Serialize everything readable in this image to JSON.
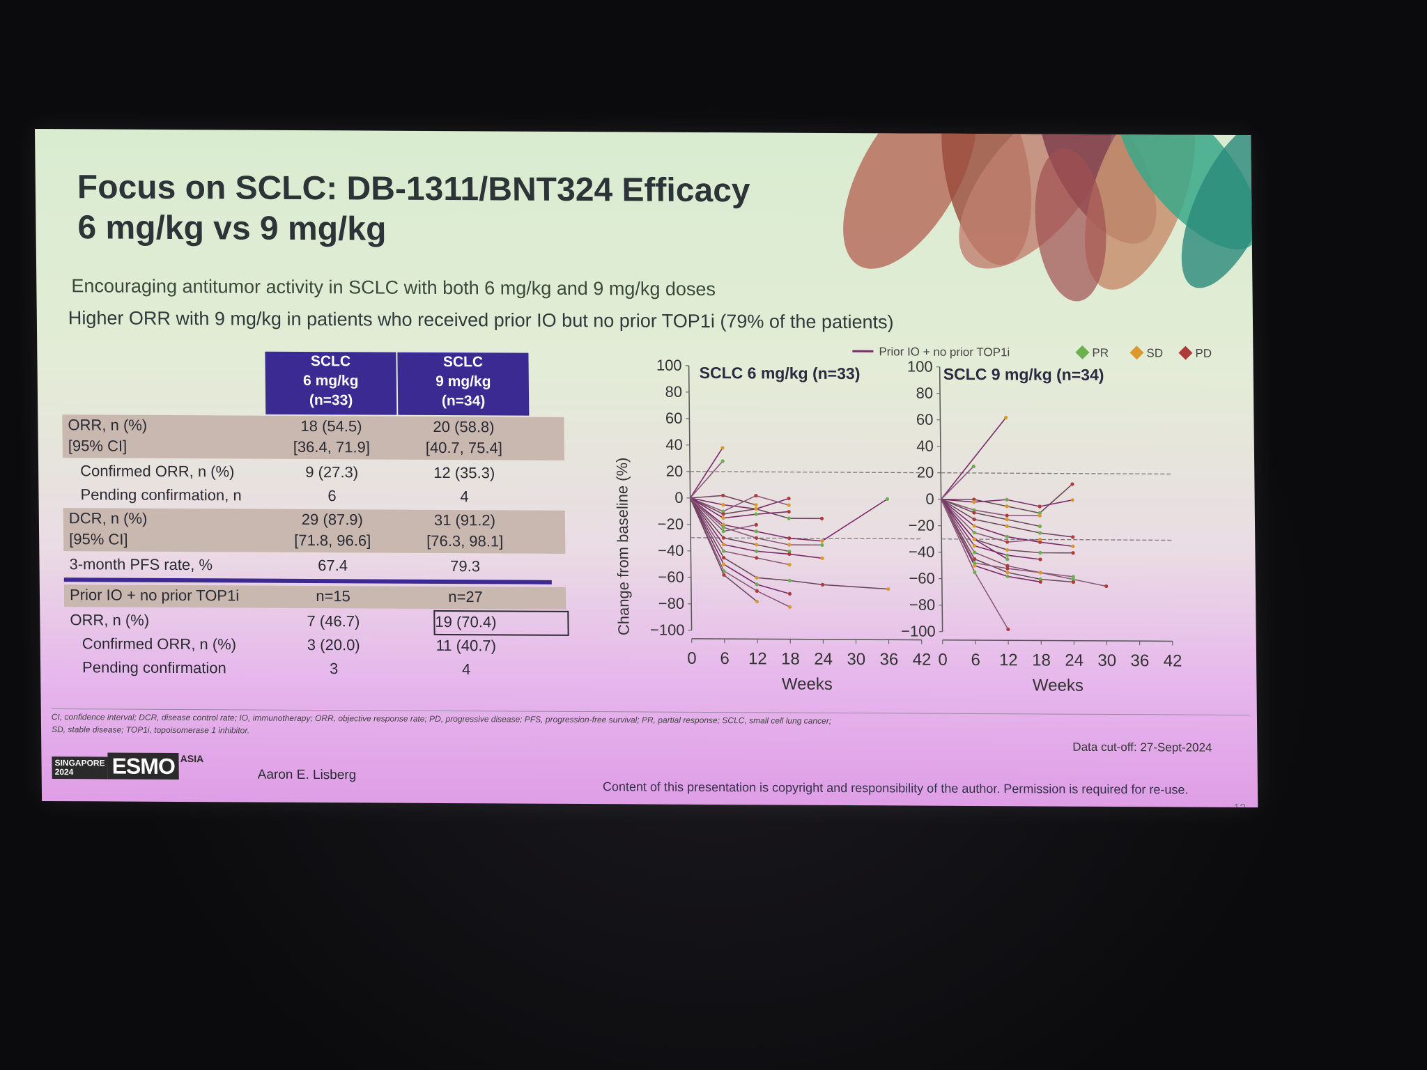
{
  "slide": {
    "title_line1": "Focus on SCLC: DB-1311/BNT324 Efficacy",
    "title_line2": "6 mg/kg vs 9 mg/kg",
    "subtitle1": "Encouraging antitumor activity in SCLC with both 6 mg/kg and 9 mg/kg doses",
    "subtitle2": "Higher ORR with 9 mg/kg in patients who received prior IO but no prior TOP1i (79% of the patients)"
  },
  "table": {
    "headers": [
      [
        "SCLC",
        "6 mg/kg",
        "(n=33)"
      ],
      [
        "SCLC",
        "9 mg/kg",
        "(n=34)"
      ]
    ],
    "rows": [
      {
        "label": "ORR, n (%)",
        "a": "18 (54.5)",
        "b": "20 (58.8)"
      },
      {
        "label": "[95% CI]",
        "a": "[36.4, 71.9]",
        "b": "[40.7, 75.4]"
      },
      {
        "label": "Confirmed ORR, n (%)",
        "a": "9 (27.3)",
        "b": "12 (35.3)"
      },
      {
        "label": "Pending confirmation, n",
        "a": "6",
        "b": "4"
      },
      {
        "label": "DCR, n (%)",
        "a": "29 (87.9)",
        "b": "31 (91.2)"
      },
      {
        "label": "[95% CI]",
        "a": "[71.8, 96.6]",
        "b": "[76.3, 98.1]"
      },
      {
        "label": "3-month PFS rate, %",
        "a": "67.4",
        "b": "79.3"
      },
      {
        "label": "Prior IO + no prior TOP1i",
        "a": "n=15",
        "b": "n=27"
      },
      {
        "label": "ORR, n (%)",
        "a": "7 (46.7)",
        "b": "19 (70.4)"
      },
      {
        "label": "Confirmed ORR, n (%)",
        "a": "3 (20.0)",
        "b": "11 (40.7)"
      },
      {
        "label": "Pending confirmation",
        "a": "3",
        "b": "4"
      }
    ]
  },
  "legend": {
    "line_label": "Prior IO + no prior TOP1i",
    "pr": "PR",
    "sd": "SD",
    "pd": "PD",
    "colors": {
      "pr": "#6ab04c",
      "sd": "#d99a2b",
      "pd": "#b03a3a",
      "io_line": "#7a2a6a"
    }
  },
  "chart_data": [
    {
      "type": "line",
      "title": "SCLC 6 mg/kg (n=33)",
      "xlabel": "Weeks",
      "ylabel": "Change from baseline (%)",
      "xlim": [
        0,
        42
      ],
      "ylim": [
        -100,
        100
      ],
      "xticks": [
        "0",
        "6",
        "12",
        "18",
        "24",
        "30",
        "36",
        "42"
      ],
      "yticks": [
        "100",
        "80",
        "60",
        "40",
        "20",
        "0",
        "−20",
        "−40",
        "−60",
        "−80",
        "−100"
      ],
      "reference_lines": [
        20,
        -30
      ],
      "series": [
        {
          "x": [
            0,
            6
          ],
          "y": [
            0,
            38
          ]
        },
        {
          "x": [
            0,
            6
          ],
          "y": [
            0,
            28
          ]
        },
        {
          "x": [
            0,
            6,
            12
          ],
          "y": [
            0,
            2,
            -5
          ]
        },
        {
          "x": [
            0,
            6,
            12,
            18
          ],
          "y": [
            0,
            -5,
            -8,
            0
          ]
        },
        {
          "x": [
            0,
            6,
            12,
            18
          ],
          "y": [
            0,
            -10,
            2,
            -5
          ]
        },
        {
          "x": [
            0,
            6,
            12,
            18,
            24
          ],
          "y": [
            0,
            -12,
            -8,
            -15,
            -15
          ]
        },
        {
          "x": [
            0,
            6,
            12,
            18,
            24,
            36
          ],
          "y": [
            0,
            -20,
            -25,
            -30,
            -32,
            0
          ]
        },
        {
          "x": [
            0,
            6,
            12,
            18,
            24
          ],
          "y": [
            0,
            -22,
            -30,
            -35,
            -35
          ]
        },
        {
          "x": [
            0,
            6,
            12,
            18
          ],
          "y": [
            0,
            -30,
            -35,
            -40
          ]
        },
        {
          "x": [
            0,
            6,
            12,
            18,
            24
          ],
          "y": [
            0,
            -35,
            -40,
            -42,
            -45
          ]
        },
        {
          "x": [
            0,
            6,
            12,
            18
          ],
          "y": [
            0,
            -40,
            -45,
            -50
          ]
        },
        {
          "x": [
            0,
            6,
            12,
            18,
            24,
            36
          ],
          "y": [
            0,
            -45,
            -60,
            -62,
            -65,
            -68
          ]
        },
        {
          "x": [
            0,
            6,
            12,
            18
          ],
          "y": [
            0,
            -50,
            -65,
            -72
          ]
        },
        {
          "x": [
            0,
            6,
            12,
            18
          ],
          "y": [
            0,
            -55,
            -70,
            -82
          ]
        },
        {
          "x": [
            0,
            6,
            12
          ],
          "y": [
            0,
            -58,
            -78
          ]
        },
        {
          "x": [
            0,
            6,
            12,
            18
          ],
          "y": [
            0,
            -15,
            -12,
            -10
          ]
        },
        {
          "x": [
            0,
            6,
            12
          ],
          "y": [
            0,
            -25,
            -20
          ]
        }
      ]
    },
    {
      "type": "line",
      "title": "SCLC 9 mg/kg (n=34)",
      "xlabel": "Weeks",
      "xlim": [
        0,
        42
      ],
      "ylim": [
        -100,
        100
      ],
      "xticks": [
        "0",
        "6",
        "12",
        "18",
        "24",
        "30",
        "36",
        "42"
      ],
      "yticks": [
        "100",
        "80",
        "60",
        "40",
        "20",
        "0",
        "−20",
        "−40",
        "−60",
        "−80",
        "−100"
      ],
      "reference_lines": [
        20,
        -30
      ],
      "series": [
        {
          "x": [
            0,
            12
          ],
          "y": [
            0,
            62
          ]
        },
        {
          "x": [
            0,
            6
          ],
          "y": [
            0,
            25
          ]
        },
        {
          "x": [
            0,
            6,
            12,
            18,
            24
          ],
          "y": [
            0,
            0,
            -5,
            -10,
            12
          ]
        },
        {
          "x": [
            0,
            6,
            12,
            18,
            24
          ],
          "y": [
            0,
            -2,
            0,
            -5,
            0
          ]
        },
        {
          "x": [
            0,
            6,
            12,
            18
          ],
          "y": [
            0,
            -8,
            -12,
            -12
          ]
        },
        {
          "x": [
            0,
            6,
            12,
            18,
            24
          ],
          "y": [
            0,
            -15,
            -20,
            -25,
            -28
          ]
        },
        {
          "x": [
            0,
            6,
            12,
            18,
            24
          ],
          "y": [
            0,
            -20,
            -28,
            -32,
            -35
          ]
        },
        {
          "x": [
            0,
            6,
            12,
            18
          ],
          "y": [
            0,
            -25,
            -32,
            -30
          ]
        },
        {
          "x": [
            0,
            6,
            12,
            18,
            24
          ],
          "y": [
            0,
            -30,
            -38,
            -40,
            -40
          ]
        },
        {
          "x": [
            0,
            6,
            12,
            18
          ],
          "y": [
            0,
            -35,
            -42,
            -45
          ]
        },
        {
          "x": [
            0,
            6,
            12,
            18,
            24,
            30
          ],
          "y": [
            0,
            -40,
            -50,
            -55,
            -60,
            -65
          ]
        },
        {
          "x": [
            0,
            6,
            12,
            18,
            24
          ],
          "y": [
            0,
            -45,
            -55,
            -60,
            -62
          ]
        },
        {
          "x": [
            0,
            6,
            12,
            18
          ],
          "y": [
            0,
            -50,
            -58,
            -62
          ]
        },
        {
          "x": [
            0,
            6,
            12
          ],
          "y": [
            0,
            -55,
            -98
          ]
        },
        {
          "x": [
            0,
            6,
            12,
            18
          ],
          "y": [
            0,
            -10,
            -15,
            -20
          ]
        },
        {
          "x": [
            0,
            6,
            12
          ],
          "y": [
            0,
            -30,
            -45
          ]
        },
        {
          "x": [
            0,
            6,
            12,
            18,
            24
          ],
          "y": [
            0,
            -48,
            -52,
            -55,
            -58
          ]
        }
      ]
    }
  ],
  "footer": {
    "footnote_line1": "CI, confidence interval; DCR, disease control rate; IO, immunotherapy; ORR, objective response rate; PD, progressive disease; PFS, progression-free survival; PR, partial response; SCLC, small cell lung cancer;",
    "footnote_line2": "SD, stable disease; TOP1i, topoisomerase 1 inhibitor.",
    "data_cutoff": "Data cut-off: 27-Sept-2024",
    "esmo_city": "SINGAPORE",
    "esmo_year": "2024",
    "esmo_name": "ESMO",
    "esmo_asia": "ASIA",
    "author": "Aaron E. Lisberg",
    "copyright": "Content of this presentation is copyright and responsibility of the author. Permission is required for re-use.",
    "page": "12"
  }
}
